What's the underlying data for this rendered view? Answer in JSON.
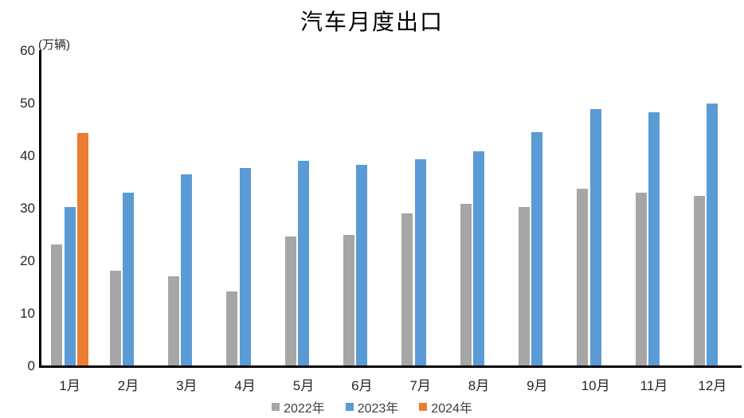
{
  "chart_data": {
    "type": "bar",
    "title": "汽车月度出口",
    "unit_label": "(万辆)",
    "categories": [
      "1月",
      "2月",
      "3月",
      "4月",
      "5月",
      "6月",
      "7月",
      "8月",
      "9月",
      "10月",
      "11月",
      "12月"
    ],
    "series": [
      {
        "name": "2022年",
        "color": "#a6a6a6",
        "values": [
          23.1,
          18.0,
          17.0,
          14.1,
          24.5,
          24.9,
          29.0,
          30.8,
          30.1,
          33.7,
          32.9,
          32.2
        ]
      },
      {
        "name": "2023年",
        "color": "#5b9bd5",
        "values": [
          30.1,
          32.9,
          36.4,
          37.6,
          38.9,
          38.2,
          39.2,
          40.8,
          44.4,
          48.8,
          48.2,
          49.9
        ]
      },
      {
        "name": "2024年",
        "color": "#ed7d31",
        "values": [
          44.3,
          null,
          null,
          null,
          null,
          null,
          null,
          null,
          null,
          null,
          null,
          null
        ]
      }
    ],
    "ylim": [
      0,
      60
    ],
    "y_ticks": [
      0,
      10,
      20,
      30,
      40,
      50,
      60
    ],
    "grid": false,
    "legend_position": "bottom",
    "axis_color": "#000000"
  }
}
